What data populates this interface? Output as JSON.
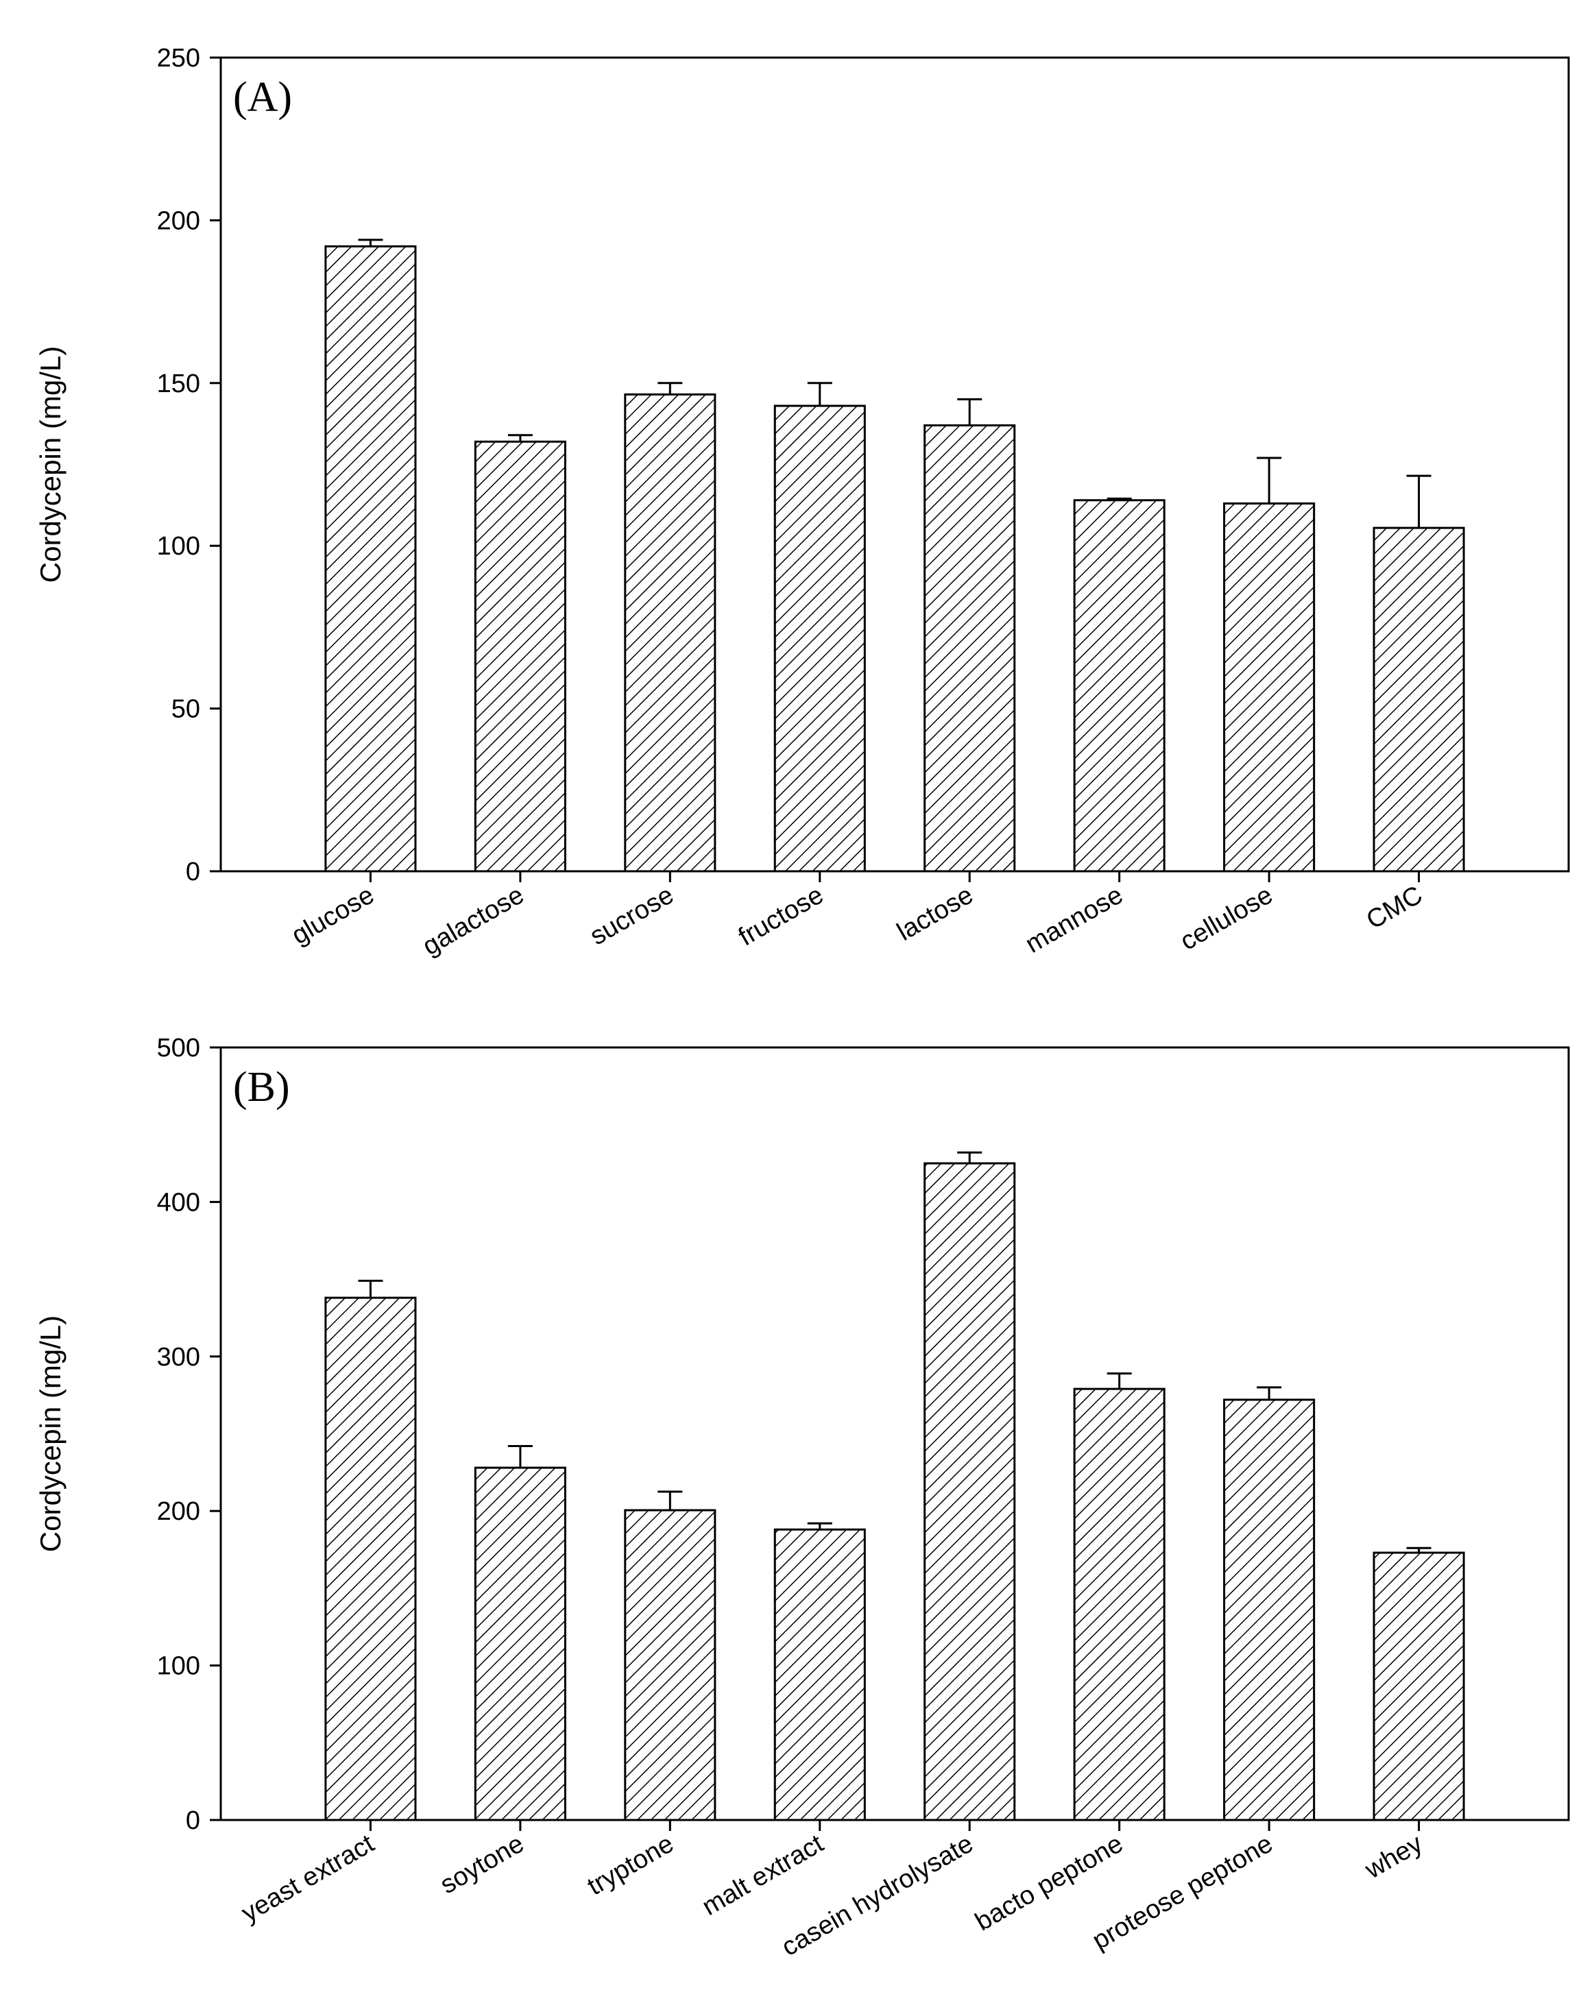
{
  "chart_data": [
    {
      "type": "bar",
      "panel_label": "(A)",
      "ylabel": "Cordycepin (mg/L)",
      "categories": [
        "glucose",
        "galactose",
        "sucrose",
        "fructose",
        "lactose",
        "mannose",
        "cellulose",
        "CMC"
      ],
      "values": [
        192,
        132,
        146.5,
        143,
        137,
        114,
        113,
        105.5
      ],
      "errors": [
        2,
        2,
        3.5,
        7,
        8,
        0.5,
        14,
        16
      ],
      "color": "#000000",
      "ylim": [
        0,
        250
      ],
      "yticks": [
        0,
        50,
        100,
        150,
        200,
        250
      ]
    },
    {
      "type": "bar",
      "panel_label": "(B)",
      "ylabel": "Cordycepin (mg/L)",
      "categories": [
        "yeast extract",
        "soytone",
        "tryptone",
        "malt extract",
        "casein hydrolysate",
        "bacto peptone",
        "proteose peptone",
        "whey"
      ],
      "values": [
        338,
        228,
        200.5,
        188,
        425,
        279,
        272,
        173
      ],
      "errors": [
        11,
        14,
        12,
        4,
        7,
        10,
        8,
        3
      ],
      "color": "#000000",
      "ylim": [
        0,
        500
      ],
      "yticks": [
        0,
        100,
        200,
        300,
        400,
        500
      ]
    }
  ]
}
